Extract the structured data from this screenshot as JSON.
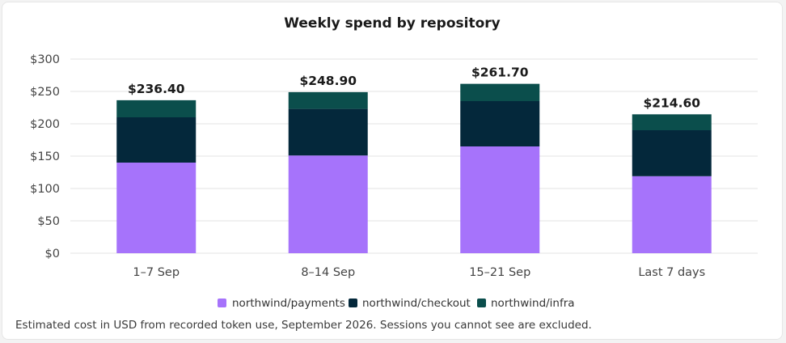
{
  "chart_data": {
    "type": "bar",
    "stacked": true,
    "title": "Weekly spend by repository",
    "xlabel": "",
    "ylabel": "",
    "categories": [
      "1–7 Sep",
      "8–14 Sep",
      "15–21 Sep",
      "Last 7 days"
    ],
    "series": [
      {
        "name": "northwind/payments",
        "color": "#a673fb",
        "values": [
          140,
          151,
          165,
          119
        ]
      },
      {
        "name": "northwind/checkout",
        "color": "#04283b",
        "values": [
          70,
          72,
          70,
          71
        ]
      },
      {
        "name": "northwind/infra",
        "color": "#0b4e4c",
        "values": [
          26.4,
          25.9,
          26.7,
          24.6
        ]
      }
    ],
    "totals": [
      "$236.40",
      "$248.90",
      "$261.70",
      "$214.60"
    ],
    "ylim": [
      0,
      300
    ],
    "yticks": [
      0,
      50,
      100,
      150,
      200,
      250,
      300
    ],
    "ytick_labels": [
      "$0",
      "$50",
      "$100",
      "$150",
      "$200",
      "$250",
      "$300"
    ],
    "grid": true,
    "legend_position": "bottom"
  },
  "footnote": "Estimated cost in USD from recorded token use, September 2026. Sessions you cannot see are excluded."
}
